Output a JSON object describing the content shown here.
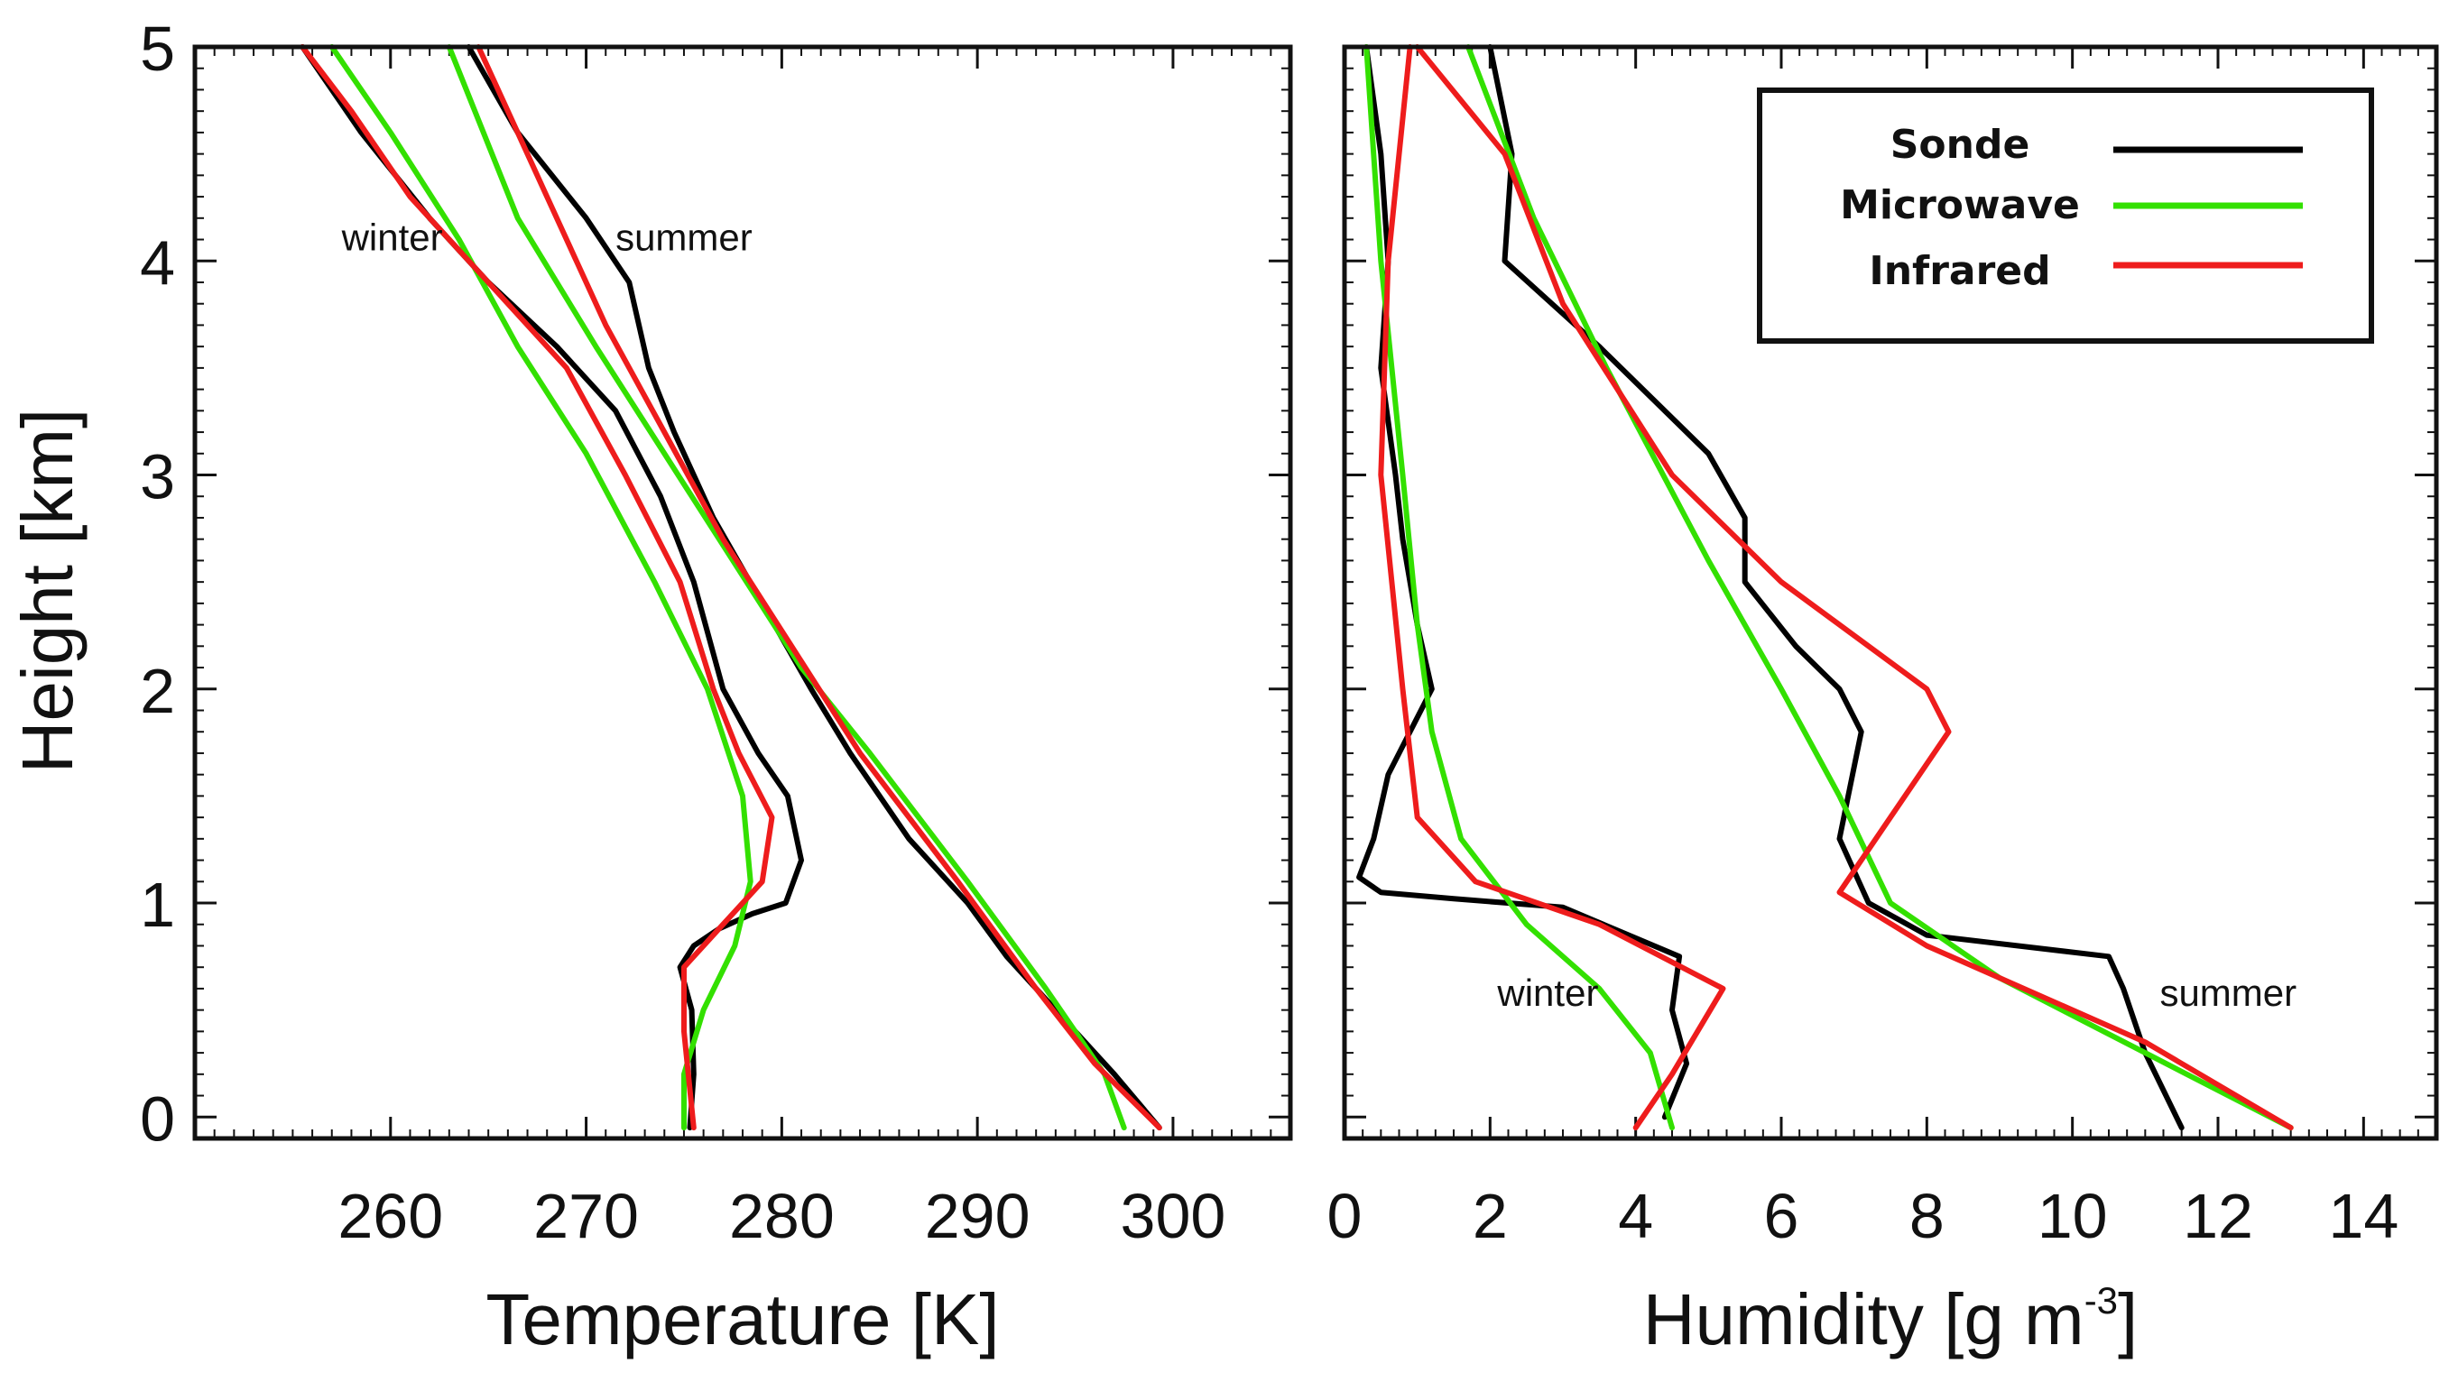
{
  "colors": {
    "sonde": "#000000",
    "microwave": "#33e000",
    "infrared": "#ee1c1c"
  },
  "legend": {
    "items": [
      {
        "label": "Sonde",
        "series": "sonde"
      },
      {
        "label": "Microwave",
        "series": "microwave"
      },
      {
        "label": "Infrared",
        "series": "infrared"
      }
    ]
  },
  "chart_data": [
    {
      "type": "line",
      "xlabel": "Temperature [K]",
      "ylabel": "Height [km]",
      "xlim": [
        250,
        306
      ],
      "ylim": [
        -0.1,
        5
      ],
      "xticks": [
        260,
        270,
        280,
        290,
        300
      ],
      "yticks": [
        0,
        1,
        2,
        3,
        4,
        5
      ],
      "annotations": [
        {
          "text": "winter",
          "x": 257.5,
          "y": 4.05
        },
        {
          "text": "summer",
          "x": 271.5,
          "y": 4.05
        }
      ],
      "series": [
        {
          "name": "Sonde",
          "color_key": "sonde",
          "group": "winter",
          "points": [
            [
              275.3,
              -0.05
            ],
            [
              275.5,
              0.2
            ],
            [
              275.4,
              0.5
            ],
            [
              274.8,
              0.7
            ],
            [
              275.5,
              0.8
            ],
            [
              276.8,
              0.88
            ],
            [
              278.5,
              0.95
            ],
            [
              280.2,
              1.0
            ],
            [
              281.0,
              1.2
            ],
            [
              280.3,
              1.5
            ],
            [
              278.8,
              1.7
            ],
            [
              277.0,
              2.0
            ],
            [
              275.5,
              2.5
            ],
            [
              273.8,
              2.9
            ],
            [
              271.5,
              3.3
            ],
            [
              268.5,
              3.6
            ],
            [
              265.0,
              3.9
            ],
            [
              262.0,
              4.2
            ],
            [
              258.5,
              4.6
            ],
            [
              255.5,
              5.0
            ]
          ]
        },
        {
          "name": "Microwave",
          "color_key": "microwave",
          "group": "winter",
          "points": [
            [
              275.0,
              -0.05
            ],
            [
              275.0,
              0.2
            ],
            [
              276.0,
              0.5
            ],
            [
              277.6,
              0.8
            ],
            [
              278.4,
              1.1
            ],
            [
              278.0,
              1.5
            ],
            [
              276.2,
              2.0
            ],
            [
              273.5,
              2.5
            ],
            [
              270.0,
              3.1
            ],
            [
              266.5,
              3.6
            ],
            [
              263.5,
              4.1
            ],
            [
              260.0,
              4.6
            ],
            [
              257.0,
              5.0
            ]
          ]
        },
        {
          "name": "Infrared",
          "color_key": "infrared",
          "group": "winter",
          "points": [
            [
              275.5,
              -0.05
            ],
            [
              275.0,
              0.4
            ],
            [
              275.0,
              0.7
            ],
            [
              277.0,
              0.9
            ],
            [
              279.0,
              1.1
            ],
            [
              279.5,
              1.4
            ],
            [
              277.8,
              1.7
            ],
            [
              276.5,
              2.0
            ],
            [
              274.8,
              2.5
            ],
            [
              272.0,
              3.0
            ],
            [
              269.0,
              3.5
            ],
            [
              265.0,
              3.9
            ],
            [
              261.0,
              4.3
            ],
            [
              258.0,
              4.7
            ],
            [
              255.5,
              5.0
            ]
          ]
        },
        {
          "name": "Sonde",
          "color_key": "sonde",
          "group": "summer",
          "points": [
            [
              299.3,
              -0.05
            ],
            [
              297.0,
              0.2
            ],
            [
              294.0,
              0.5
            ],
            [
              291.5,
              0.75
            ],
            [
              289.5,
              1.0
            ],
            [
              286.5,
              1.3
            ],
            [
              283.5,
              1.7
            ],
            [
              281.5,
              2.0
            ],
            [
              279.0,
              2.4
            ],
            [
              276.5,
              2.8
            ],
            [
              274.5,
              3.2
            ],
            [
              273.2,
              3.5
            ],
            [
              272.2,
              3.9
            ],
            [
              270.0,
              4.2
            ],
            [
              266.5,
              4.6
            ],
            [
              264.0,
              5.0
            ]
          ]
        },
        {
          "name": "Microwave",
          "color_key": "microwave",
          "group": "summer",
          "points": [
            [
              297.5,
              -0.05
            ],
            [
              296.5,
              0.2
            ],
            [
              293.5,
              0.6
            ],
            [
              289.5,
              1.1
            ],
            [
              284.5,
              1.7
            ],
            [
              281.0,
              2.1
            ],
            [
              277.5,
              2.6
            ],
            [
              274.0,
              3.1
            ],
            [
              270.5,
              3.6
            ],
            [
              266.5,
              4.2
            ],
            [
              263.0,
              5.0
            ]
          ]
        },
        {
          "name": "Infrared",
          "color_key": "infrared",
          "group": "summer",
          "points": [
            [
              299.3,
              -0.05
            ],
            [
              296.0,
              0.25
            ],
            [
              293.0,
              0.6
            ],
            [
              289.0,
              1.1
            ],
            [
              284.0,
              1.7
            ],
            [
              280.5,
              2.2
            ],
            [
              277.0,
              2.7
            ],
            [
              274.0,
              3.2
            ],
            [
              271.0,
              3.7
            ],
            [
              268.0,
              4.3
            ],
            [
              264.5,
              5.0
            ]
          ]
        }
      ]
    },
    {
      "type": "line",
      "xlabel": "Humidity [g m",
      "xlabel_superscript": "-3",
      "xlabel_suffix": "]",
      "ylabel": "",
      "xlim": [
        0,
        15
      ],
      "ylim": [
        -0.1,
        5
      ],
      "xticks": [
        0,
        2,
        4,
        6,
        8,
        10,
        12,
        14
      ],
      "yticks": [
        0,
        1,
        2,
        3,
        4,
        5
      ],
      "annotations": [
        {
          "text": "winter",
          "x": 2.1,
          "y": 0.52
        },
        {
          "text": "summer",
          "x": 11.2,
          "y": 0.52
        }
      ],
      "series": [
        {
          "name": "Sonde",
          "color_key": "sonde",
          "group": "winter",
          "points": [
            [
              4.4,
              0.0
            ],
            [
              4.7,
              0.25
            ],
            [
              4.5,
              0.5
            ],
            [
              4.6,
              0.75
            ],
            [
              3.0,
              0.98
            ],
            [
              1.5,
              1.02
            ],
            [
              0.5,
              1.05
            ],
            [
              0.2,
              1.12
            ],
            [
              0.4,
              1.3
            ],
            [
              0.6,
              1.6
            ],
            [
              0.9,
              1.8
            ],
            [
              1.2,
              2.0
            ],
            [
              1.0,
              2.3
            ],
            [
              0.8,
              2.7
            ],
            [
              0.7,
              3.0
            ],
            [
              0.5,
              3.5
            ],
            [
              0.6,
              4.0
            ],
            [
              0.5,
              4.5
            ],
            [
              0.3,
              5.0
            ]
          ]
        },
        {
          "name": "Microwave",
          "color_key": "microwave",
          "group": "winter",
          "points": [
            [
              4.5,
              -0.05
            ],
            [
              4.2,
              0.3
            ],
            [
              3.5,
              0.6
            ],
            [
              2.5,
              0.9
            ],
            [
              1.6,
              1.3
            ],
            [
              1.2,
              1.8
            ],
            [
              1.0,
              2.3
            ],
            [
              0.8,
              3.0
            ],
            [
              0.5,
              4.0
            ],
            [
              0.3,
              5.0
            ]
          ]
        },
        {
          "name": "Infrared",
          "color_key": "infrared",
          "group": "winter",
          "points": [
            [
              4.0,
              -0.05
            ],
            [
              4.5,
              0.2
            ],
            [
              5.2,
              0.6
            ],
            [
              3.5,
              0.9
            ],
            [
              1.8,
              1.1
            ],
            [
              1.0,
              1.4
            ],
            [
              0.8,
              2.0
            ],
            [
              0.5,
              3.0
            ],
            [
              0.6,
              4.0
            ],
            [
              0.9,
              5.0
            ]
          ]
        },
        {
          "name": "Sonde",
          "color_key": "sonde",
          "group": "summer",
          "points": [
            [
              11.5,
              -0.05
            ],
            [
              11.0,
              0.3
            ],
            [
              10.7,
              0.6
            ],
            [
              10.5,
              0.75
            ],
            [
              8.0,
              0.85
            ],
            [
              7.2,
              1.0
            ],
            [
              6.8,
              1.3
            ],
            [
              7.1,
              1.8
            ],
            [
              6.8,
              2.0
            ],
            [
              6.2,
              2.2
            ],
            [
              5.5,
              2.5
            ],
            [
              5.5,
              2.8
            ],
            [
              5.0,
              3.1
            ],
            [
              3.5,
              3.6
            ],
            [
              2.2,
              4.0
            ],
            [
              2.3,
              4.5
            ],
            [
              2.0,
              5.0
            ]
          ]
        },
        {
          "name": "Microwave",
          "color_key": "microwave",
          "group": "summer",
          "points": [
            [
              13.0,
              -0.05
            ],
            [
              11.0,
              0.3
            ],
            [
              9.0,
              0.65
            ],
            [
              7.5,
              1.0
            ],
            [
              6.8,
              1.5
            ],
            [
              6.0,
              2.0
            ],
            [
              5.0,
              2.6
            ],
            [
              3.6,
              3.5
            ],
            [
              2.6,
              4.2
            ],
            [
              1.7,
              5.0
            ]
          ]
        },
        {
          "name": "Infrared",
          "color_key": "infrared",
          "group": "summer",
          "points": [
            [
              13.0,
              -0.05
            ],
            [
              11.0,
              0.35
            ],
            [
              8.0,
              0.8
            ],
            [
              6.8,
              1.05
            ],
            [
              7.5,
              1.4
            ],
            [
              8.3,
              1.8
            ],
            [
              8.0,
              2.0
            ],
            [
              6.0,
              2.5
            ],
            [
              4.5,
              3.0
            ],
            [
              3.0,
              3.8
            ],
            [
              2.2,
              4.5
            ],
            [
              1.0,
              5.0
            ]
          ]
        }
      ]
    }
  ]
}
